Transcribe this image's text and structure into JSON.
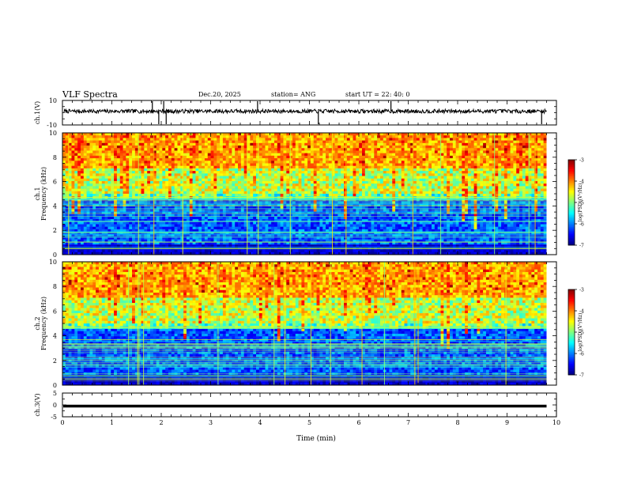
{
  "header": {
    "title": "VLF Spectra",
    "date": "Dec.20, 2025",
    "station": "station= ANG",
    "start": "start  UT  =   22: 40: 0"
  },
  "chart_data": [
    {
      "type": "line",
      "id": "ch1-waveform",
      "ylabel": "ch.1(V)",
      "ylim": [
        -10,
        10
      ],
      "yticks": [
        "10",
        "-10"
      ],
      "baseline": 0,
      "trace": "noisy waveform centered near 0 V with occasional spikes"
    },
    {
      "type": "heatmap",
      "id": "ch1-spectrogram",
      "ylabel_top": "ch.1",
      "ylabel": "Frequency (kHz)",
      "ylim": [
        0,
        10
      ],
      "yticks": [
        "0",
        "2",
        "4",
        "6",
        "8",
        "10"
      ],
      "colorbar": {
        "label": "log(PSD)(V²/Hz)",
        "range": [
          -7,
          -3
        ],
        "ticks": [
          "-3",
          "-4",
          "-5",
          "-6",
          "-7"
        ]
      }
    },
    {
      "type": "heatmap",
      "id": "ch2-spectrogram",
      "ylabel_top": "ch.2",
      "ylabel": "Frequency (kHz)",
      "ylim": [
        0,
        10
      ],
      "yticks": [
        "0",
        "2",
        "4",
        "6",
        "8",
        "10"
      ],
      "colorbar": {
        "label": "log(PSD)(V²/Hz)",
        "range": [
          -7,
          -3
        ],
        "ticks": [
          "-3",
          "-4",
          "-5",
          "-6",
          "-7"
        ]
      }
    },
    {
      "type": "line",
      "id": "ch3-waveform",
      "ylabel": "ch.3(V)",
      "ylim": [
        -5,
        5
      ],
      "yticks": [
        "5",
        "0",
        "-5"
      ],
      "baseline": -0.5,
      "trace": "flat line"
    }
  ],
  "xaxis": {
    "label": "Time (min)",
    "range": [
      0,
      10
    ],
    "ticks": [
      "0",
      "1",
      "2",
      "3",
      "4",
      "5",
      "6",
      "7",
      "8",
      "9",
      "10"
    ],
    "data_end": 9.8
  }
}
